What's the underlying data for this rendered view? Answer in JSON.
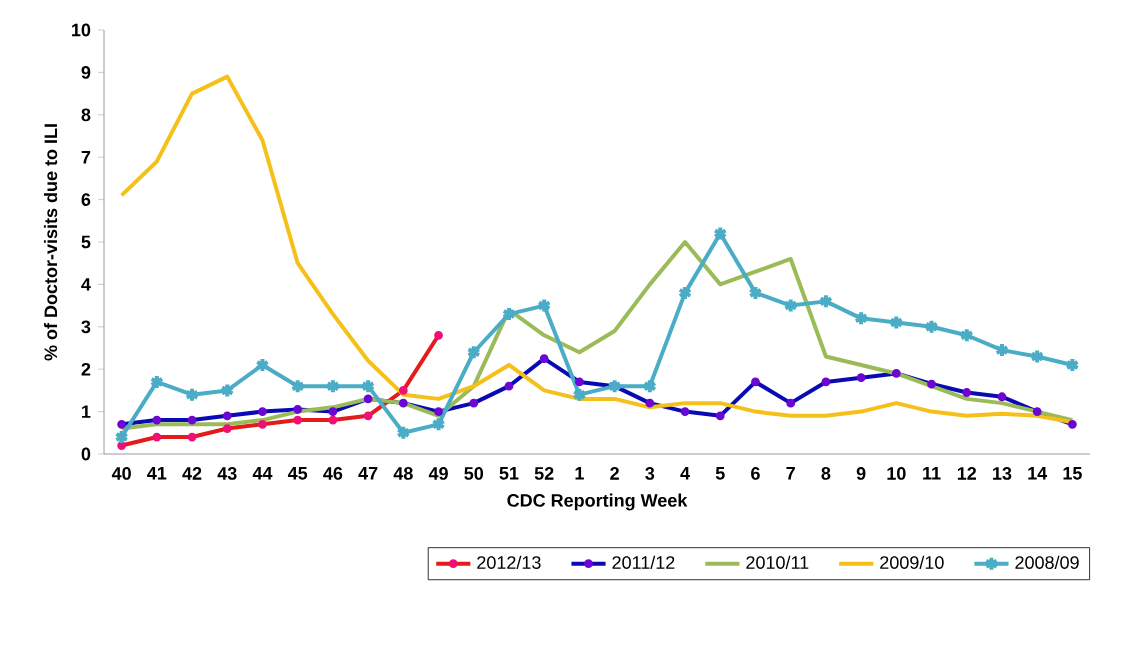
{
  "chart_data": {
    "type": "line",
    "xlabel": "CDC Reporting Week",
    "ylabel": "% of Doctor-visits due to ILI",
    "categories": [
      "40",
      "41",
      "42",
      "43",
      "44",
      "45",
      "46",
      "47",
      "48",
      "49",
      "50",
      "51",
      "52",
      "1",
      "2",
      "3",
      "4",
      "5",
      "6",
      "7",
      "8",
      "9",
      "10",
      "11",
      "12",
      "13",
      "14",
      "15"
    ],
    "ylim": [
      0,
      10
    ],
    "yticks": [
      0,
      1,
      2,
      3,
      4,
      5,
      6,
      7,
      8,
      9,
      10
    ],
    "grid": false,
    "legend": "bottom",
    "series": [
      {
        "name": "2012/13",
        "color": "#e41a1c",
        "marker": "circle",
        "values": [
          0.2,
          0.4,
          0.4,
          0.6,
          0.7,
          0.8,
          0.8,
          0.9,
          1.5,
          2.8,
          null,
          null,
          null,
          null,
          null,
          null,
          null,
          null,
          null,
          null,
          null,
          null,
          null,
          null,
          null,
          null,
          null,
          null
        ]
      },
      {
        "name": "2011/12",
        "color": "#0a0ab4",
        "marker": "circle",
        "values": [
          0.7,
          0.8,
          0.8,
          0.9,
          1.0,
          1.05,
          1.0,
          1.3,
          1.2,
          1.0,
          1.2,
          1.6,
          2.25,
          1.7,
          1.6,
          1.2,
          1.0,
          0.9,
          1.7,
          1.2,
          1.7,
          1.8,
          1.9,
          1.65,
          1.45,
          1.35,
          1.0,
          0.7
        ]
      },
      {
        "name": "2010/11",
        "color": "#9bbb59",
        "marker": "none",
        "values": [
          0.6,
          0.7,
          0.7,
          0.7,
          0.8,
          1.0,
          1.1,
          1.3,
          1.2,
          0.9,
          1.6,
          3.4,
          2.8,
          2.4,
          2.9,
          4.0,
          5.0,
          4.0,
          4.3,
          4.6,
          2.3,
          2.1,
          1.9,
          1.6,
          1.3,
          1.2,
          1.0,
          0.8
        ]
      },
      {
        "name": "2009/10",
        "color": "#f5c01a",
        "marker": "none",
        "values": [
          6.1,
          6.9,
          8.5,
          8.9,
          7.4,
          4.5,
          3.3,
          2.2,
          1.4,
          1.3,
          1.6,
          2.1,
          1.5,
          1.3,
          1.3,
          1.1,
          1.2,
          1.2,
          1.0,
          0.9,
          0.9,
          1.0,
          1.2,
          1.0,
          0.9,
          0.95,
          0.9,
          0.75
        ]
      },
      {
        "name": "2008/09",
        "color": "#4bacc6",
        "marker": "cross",
        "values": [
          0.4,
          1.7,
          1.4,
          1.5,
          2.1,
          1.6,
          1.6,
          1.6,
          0.5,
          0.7,
          2.4,
          3.3,
          3.5,
          1.4,
          1.6,
          1.6,
          3.8,
          5.2,
          3.8,
          3.5,
          3.6,
          3.2,
          3.1,
          3.0,
          2.8,
          2.45,
          2.3,
          2.1
        ]
      }
    ]
  }
}
